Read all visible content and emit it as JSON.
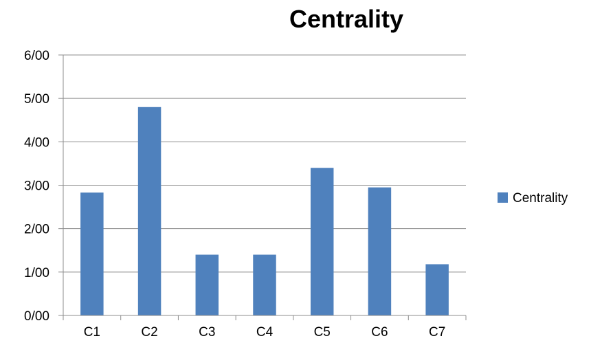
{
  "chart_data": {
    "type": "bar",
    "title": "Centrality",
    "xlabel": "",
    "ylabel": "",
    "categories": [
      "C1",
      "C2",
      "C3",
      "C4",
      "C5",
      "C6",
      "C7"
    ],
    "series": [
      {
        "name": "Centrality",
        "values": [
          2.83,
          4.8,
          1.4,
          1.4,
          3.4,
          2.95,
          1.18
        ],
        "color": "#4F81BD"
      }
    ],
    "ylim": [
      0,
      6
    ],
    "yticks": [
      "0/00",
      "1/00",
      "2/00",
      "3/00",
      "4/00",
      "5/00",
      "6/00"
    ],
    "grid": true,
    "legend": "right"
  }
}
